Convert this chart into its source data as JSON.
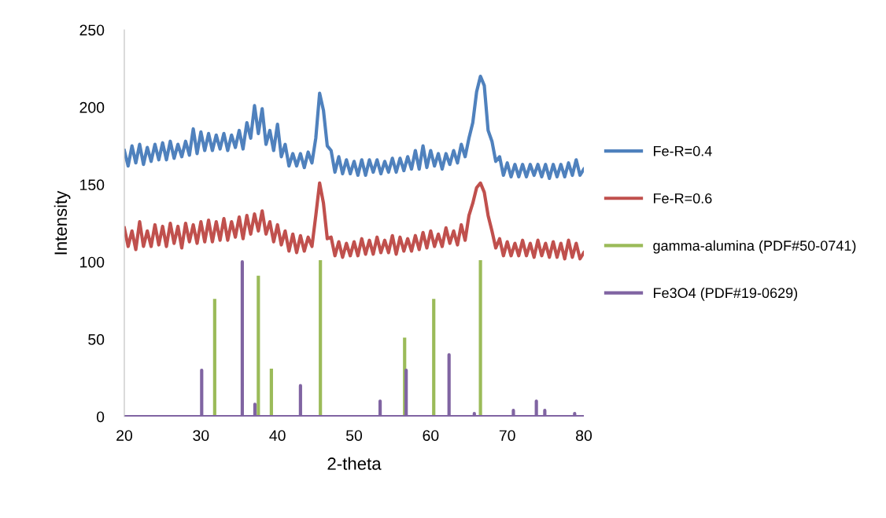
{
  "chart_data": {
    "type": "line",
    "xlabel": "2-theta",
    "ylabel": "Intensity",
    "xlim": [
      20,
      80
    ],
    "xticks": [
      20,
      30,
      40,
      50,
      60,
      70,
      80
    ],
    "ylim": [
      0,
      250
    ],
    "yticks": [
      0,
      50,
      100,
      150,
      200,
      250
    ],
    "grid": false,
    "legend": "right",
    "marker": "none",
    "line_style": "solid",
    "series": [
      {
        "name": "Fe-R=0.4",
        "color": "#4f81bd",
        "x": [
          20,
          20.5,
          21,
          21.5,
          22,
          22.5,
          23,
          23.5,
          24,
          24.5,
          25,
          25.5,
          26,
          26.5,
          27,
          27.5,
          28,
          28.5,
          29,
          29.5,
          30,
          30.5,
          31,
          31.5,
          32,
          32.5,
          33,
          33.5,
          34,
          34.5,
          35,
          35.5,
          36,
          36.5,
          37,
          37.5,
          38,
          38.5,
          39,
          39.5,
          40,
          40.5,
          41,
          41.5,
          42,
          42.5,
          43,
          43.5,
          44,
          44.5,
          45,
          45.5,
          46,
          46.5,
          47,
          47.5,
          48,
          48.5,
          49,
          49.5,
          50,
          50.5,
          51,
          51.5,
          52,
          52.5,
          53,
          53.5,
          54,
          54.5,
          55,
          55.5,
          56,
          56.5,
          57,
          57.5,
          58,
          58.5,
          59,
          59.5,
          60,
          60.5,
          61,
          61.5,
          62,
          62.5,
          63,
          63.5,
          64,
          64.5,
          65,
          65.5,
          66,
          66.5,
          67,
          67.5,
          68,
          68.5,
          69,
          69.5,
          70,
          70.5,
          71,
          71.5,
          72,
          72.5,
          73,
          73.5,
          74,
          74.5,
          75,
          75.5,
          76,
          76.5,
          77,
          77.5,
          78,
          78.5,
          79,
          79.5,
          80
        ],
        "values": [
          172,
          162,
          175,
          164,
          176,
          163,
          174,
          165,
          176,
          166,
          177,
          166,
          178,
          167,
          176,
          168,
          178,
          169,
          186,
          170,
          184,
          172,
          183,
          172,
          182,
          173,
          183,
          172,
          182,
          174,
          185,
          173,
          190,
          180,
          201,
          183,
          199,
          176,
          185,
          172,
          189,
          168,
          176,
          162,
          170,
          162,
          170,
          161,
          171,
          164,
          180,
          209,
          198,
          175,
          172,
          158,
          168,
          157,
          166,
          157,
          165,
          156,
          166,
          156,
          166,
          158,
          166,
          157,
          165,
          158,
          167,
          158,
          167,
          159,
          168,
          160,
          172,
          160,
          175,
          161,
          172,
          162,
          170,
          160,
          170,
          163,
          172,
          164,
          176,
          168,
          180,
          190,
          210,
          220,
          214,
          185,
          178,
          165,
          168,
          156,
          164,
          155,
          163,
          155,
          163,
          155,
          163,
          156,
          163,
          155,
          163,
          154,
          163,
          155,
          163,
          155,
          164,
          156,
          166,
          156,
          160
        ]
      },
      {
        "name": "Fe-R=0.6",
        "color": "#c0504d",
        "x": [
          20,
          20.5,
          21,
          21.5,
          22,
          22.5,
          23,
          23.5,
          24,
          24.5,
          25,
          25.5,
          26,
          26.5,
          27,
          27.5,
          28,
          28.5,
          29,
          29.5,
          30,
          30.5,
          31,
          31.5,
          32,
          32.5,
          33,
          33.5,
          34,
          34.5,
          35,
          35.5,
          36,
          36.5,
          37,
          37.5,
          38,
          38.5,
          39,
          39.5,
          40,
          40.5,
          41,
          41.5,
          42,
          42.5,
          43,
          43.5,
          44,
          44.5,
          45,
          45.5,
          46,
          46.5,
          47,
          47.5,
          48,
          48.5,
          49,
          49.5,
          50,
          50.5,
          51,
          51.5,
          52,
          52.5,
          53,
          53.5,
          54,
          54.5,
          55,
          55.5,
          56,
          56.5,
          57,
          57.5,
          58,
          58.5,
          59,
          59.5,
          60,
          60.5,
          61,
          61.5,
          62,
          62.5,
          63,
          63.5,
          64,
          64.5,
          65,
          65.5,
          66,
          66.5,
          67,
          67.5,
          68,
          68.5,
          69,
          69.5,
          70,
          70.5,
          71,
          71.5,
          72,
          72.5,
          73,
          73.5,
          74,
          74.5,
          75,
          75.5,
          76,
          76.5,
          77,
          77.5,
          78,
          78.5,
          79,
          79.5,
          80
        ],
        "values": [
          122,
          110,
          120,
          108,
          126,
          110,
          120,
          110,
          124,
          111,
          123,
          110,
          125,
          112,
          123,
          109,
          125,
          113,
          124,
          112,
          126,
          113,
          127,
          113,
          126,
          114,
          128,
          114,
          126,
          116,
          129,
          115,
          130,
          118,
          131,
          120,
          133,
          118,
          126,
          113,
          124,
          111,
          120,
          107,
          118,
          106,
          117,
          107,
          116,
          110,
          130,
          151,
          138,
          115,
          116,
          104,
          113,
          103,
          112,
          104,
          113,
          104,
          115,
          105,
          114,
          105,
          116,
          106,
          114,
          106,
          117,
          105,
          116,
          107,
          115,
          107,
          117,
          108,
          119,
          109,
          120,
          110,
          118,
          110,
          122,
          112,
          120,
          111,
          124,
          114,
          130,
          138,
          148,
          151,
          145,
          130,
          120,
          109,
          115,
          104,
          113,
          104,
          112,
          104,
          114,
          104,
          112,
          103,
          114,
          104,
          112,
          103,
          113,
          103,
          112,
          102,
          114,
          103,
          112,
          102,
          106
        ]
      },
      {
        "name": "gamma-alumina (PDF#50-0741)",
        "color": "#9bbb59",
        "x": [
          31.8,
          31.8,
          null,
          37.5,
          37.5,
          null,
          39.2,
          39.2,
          null,
          45.6,
          45.6,
          null,
          56.6,
          56.6,
          null,
          60.4,
          60.4,
          null,
          66.5,
          66.5,
          null
        ],
        "values": [
          0,
          75,
          null,
          0,
          90,
          null,
          0,
          30,
          null,
          0,
          100,
          null,
          0,
          50,
          null,
          0,
          75,
          null,
          0,
          100,
          null
        ]
      },
      {
        "name": "Fe3O4 (PDF#19-0629)",
        "color": "#8064a2",
        "x": [
          20,
          30.1,
          30.1,
          30.1,
          35.4,
          35.4,
          35.4,
          37.05,
          37.05,
          37.05,
          43,
          43,
          43,
          53.4,
          53.4,
          53.4,
          56.8,
          56.8,
          56.8,
          62.4,
          62.4,
          62.4,
          65.7,
          65.7,
          65.7,
          70.8,
          70.8,
          70.8,
          73.8,
          73.8,
          73.8,
          74.9,
          74.9,
          74.9,
          78.8,
          78.8,
          78.8,
          80
        ],
        "values": [
          0,
          0,
          30,
          0,
          0,
          100,
          0,
          0,
          8,
          0,
          0,
          20,
          0,
          0,
          10,
          0,
          0,
          30,
          0,
          0,
          40,
          0,
          0,
          2,
          0,
          0,
          4,
          0,
          0,
          10,
          0,
          0,
          4,
          0,
          0,
          2,
          0,
          0
        ]
      }
    ]
  }
}
